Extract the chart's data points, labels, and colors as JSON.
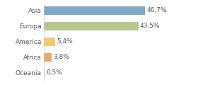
{
  "categories": [
    "Asia",
    "Europa",
    "America",
    "Africa",
    "Oceania"
  ],
  "values": [
    46.7,
    43.5,
    5.4,
    3.8,
    0.5
  ],
  "labels": [
    "46,7%",
    "43,5%",
    "5,4%",
    "3,8%",
    "0,5%"
  ],
  "bar_colors": [
    "#7fa8c9",
    "#b5c98e",
    "#f5c96b",
    "#e8a96b",
    "#f08080"
  ],
  "background_color": "#ffffff",
  "xlim": [
    0,
    60
  ],
  "bar_height": 0.55,
  "label_fontsize": 6.5,
  "tick_fontsize": 6.5
}
